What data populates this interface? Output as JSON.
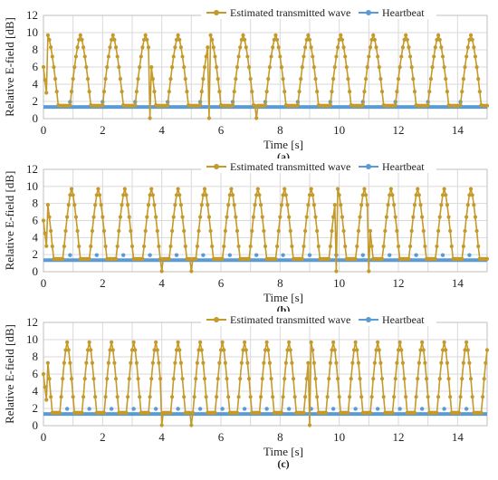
{
  "chart_data": [
    {
      "type": "line",
      "panel_label": "(a)",
      "xlabel": "Time [s]",
      "ylabel": "Relative E-field [dB]",
      "xlim": [
        0,
        15
      ],
      "ylim": [
        0,
        12
      ],
      "xticks": [
        "0",
        "2",
        "4",
        "6",
        "8",
        "10",
        "12",
        "14"
      ],
      "yticks": [
        "0",
        "2",
        "4",
        "6",
        "8",
        "10",
        "12"
      ],
      "grid": true,
      "legend": "top",
      "period_s": 1.1,
      "first_peak_s": 1.25,
      "heartbeat_times_s": [
        0.9,
        2.0,
        3.1,
        4.2,
        5.3,
        6.4,
        7.5,
        8.6,
        9.7,
        10.8,
        11.9,
        13.0,
        14.1
      ],
      "dips_s": [
        3.6,
        5.6,
        7.2
      ],
      "series": [
        {
          "name": "Estimated transmitted wave",
          "color": "#C49A2A",
          "peak_db": 9.7,
          "floor_db": 1.5
        },
        {
          "name": "Heartbeat",
          "color": "#5B9BD5",
          "baseline_db": 1.35,
          "spike_db": 1.95
        }
      ]
    },
    {
      "type": "line",
      "panel_label": "(b)",
      "xlabel": "Time [s]",
      "ylabel": "Relative E-field [dB]",
      "xlim": [
        0,
        15
      ],
      "ylim": [
        0,
        12
      ],
      "xticks": [
        "0",
        "2",
        "4",
        "6",
        "8",
        "10",
        "12",
        "14"
      ],
      "yticks": [
        "0",
        "2",
        "4",
        "6",
        "8",
        "10",
        "12"
      ],
      "grid": true,
      "legend": "top",
      "period_s": 0.9,
      "first_peak_s": 0.95,
      "heartbeat_times_s": [
        0.9,
        1.8,
        2.7,
        3.6,
        4.5,
        5.4,
        6.3,
        7.2,
        8.1,
        9.0,
        9.9,
        10.8,
        11.7,
        12.6,
        13.5,
        14.4
      ],
      "dips_s": [
        4.0,
        5.0,
        9.9,
        11.0
      ],
      "series": [
        {
          "name": "Estimated transmitted wave",
          "color": "#C49A2A",
          "peak_db": 9.7,
          "floor_db": 1.5
        },
        {
          "name": "Heartbeat",
          "color": "#5B9BD5",
          "baseline_db": 1.35,
          "spike_db": 1.95
        }
      ]
    },
    {
      "type": "line",
      "panel_label": "(c)",
      "xlabel": "Time [s]",
      "ylabel": "Relative E-field [dB]",
      "xlim": [
        0,
        15
      ],
      "ylim": [
        0,
        12
      ],
      "xticks": [
        "0",
        "2",
        "4",
        "6",
        "8",
        "10",
        "12",
        "14"
      ],
      "yticks": [
        "0",
        "2",
        "4",
        "6",
        "8",
        "10",
        "12"
      ],
      "grid": true,
      "legend": "top",
      "period_s": 0.75,
      "first_peak_s": 0.8,
      "heartbeat_times_s": [
        0.8,
        1.55,
        2.3,
        3.05,
        3.8,
        4.55,
        5.3,
        6.05,
        6.8,
        7.55,
        8.3,
        9.05,
        9.8,
        10.55,
        11.3,
        12.05,
        12.8,
        13.55,
        14.3
      ],
      "dips_s": [
        4.0,
        5.0,
        9.0
      ],
      "series": [
        {
          "name": "Estimated transmitted wave",
          "color": "#C49A2A",
          "peak_db": 9.7,
          "floor_db": 1.5
        },
        {
          "name": "Heartbeat",
          "color": "#5B9BD5",
          "baseline_db": 1.35,
          "spike_db": 1.95
        }
      ]
    }
  ]
}
